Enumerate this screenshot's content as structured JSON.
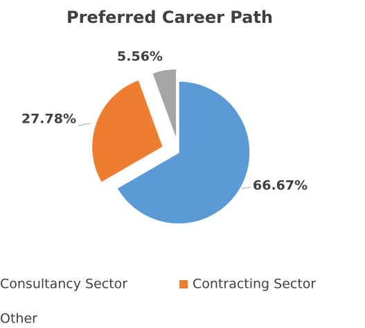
{
  "chart_data": {
    "type": "pie",
    "title": "Preferred Career Path",
    "categories": [
      "Consultancy Sector",
      "Contracting Sector",
      "Other"
    ],
    "values": [
      66.67,
      27.78,
      5.56
    ],
    "value_labels": [
      "66.67%",
      "27.78%",
      "5.56%"
    ],
    "colors": [
      "#5b9bd5",
      "#ed7d31",
      "#a5a5a5"
    ],
    "legend": "bottom"
  }
}
